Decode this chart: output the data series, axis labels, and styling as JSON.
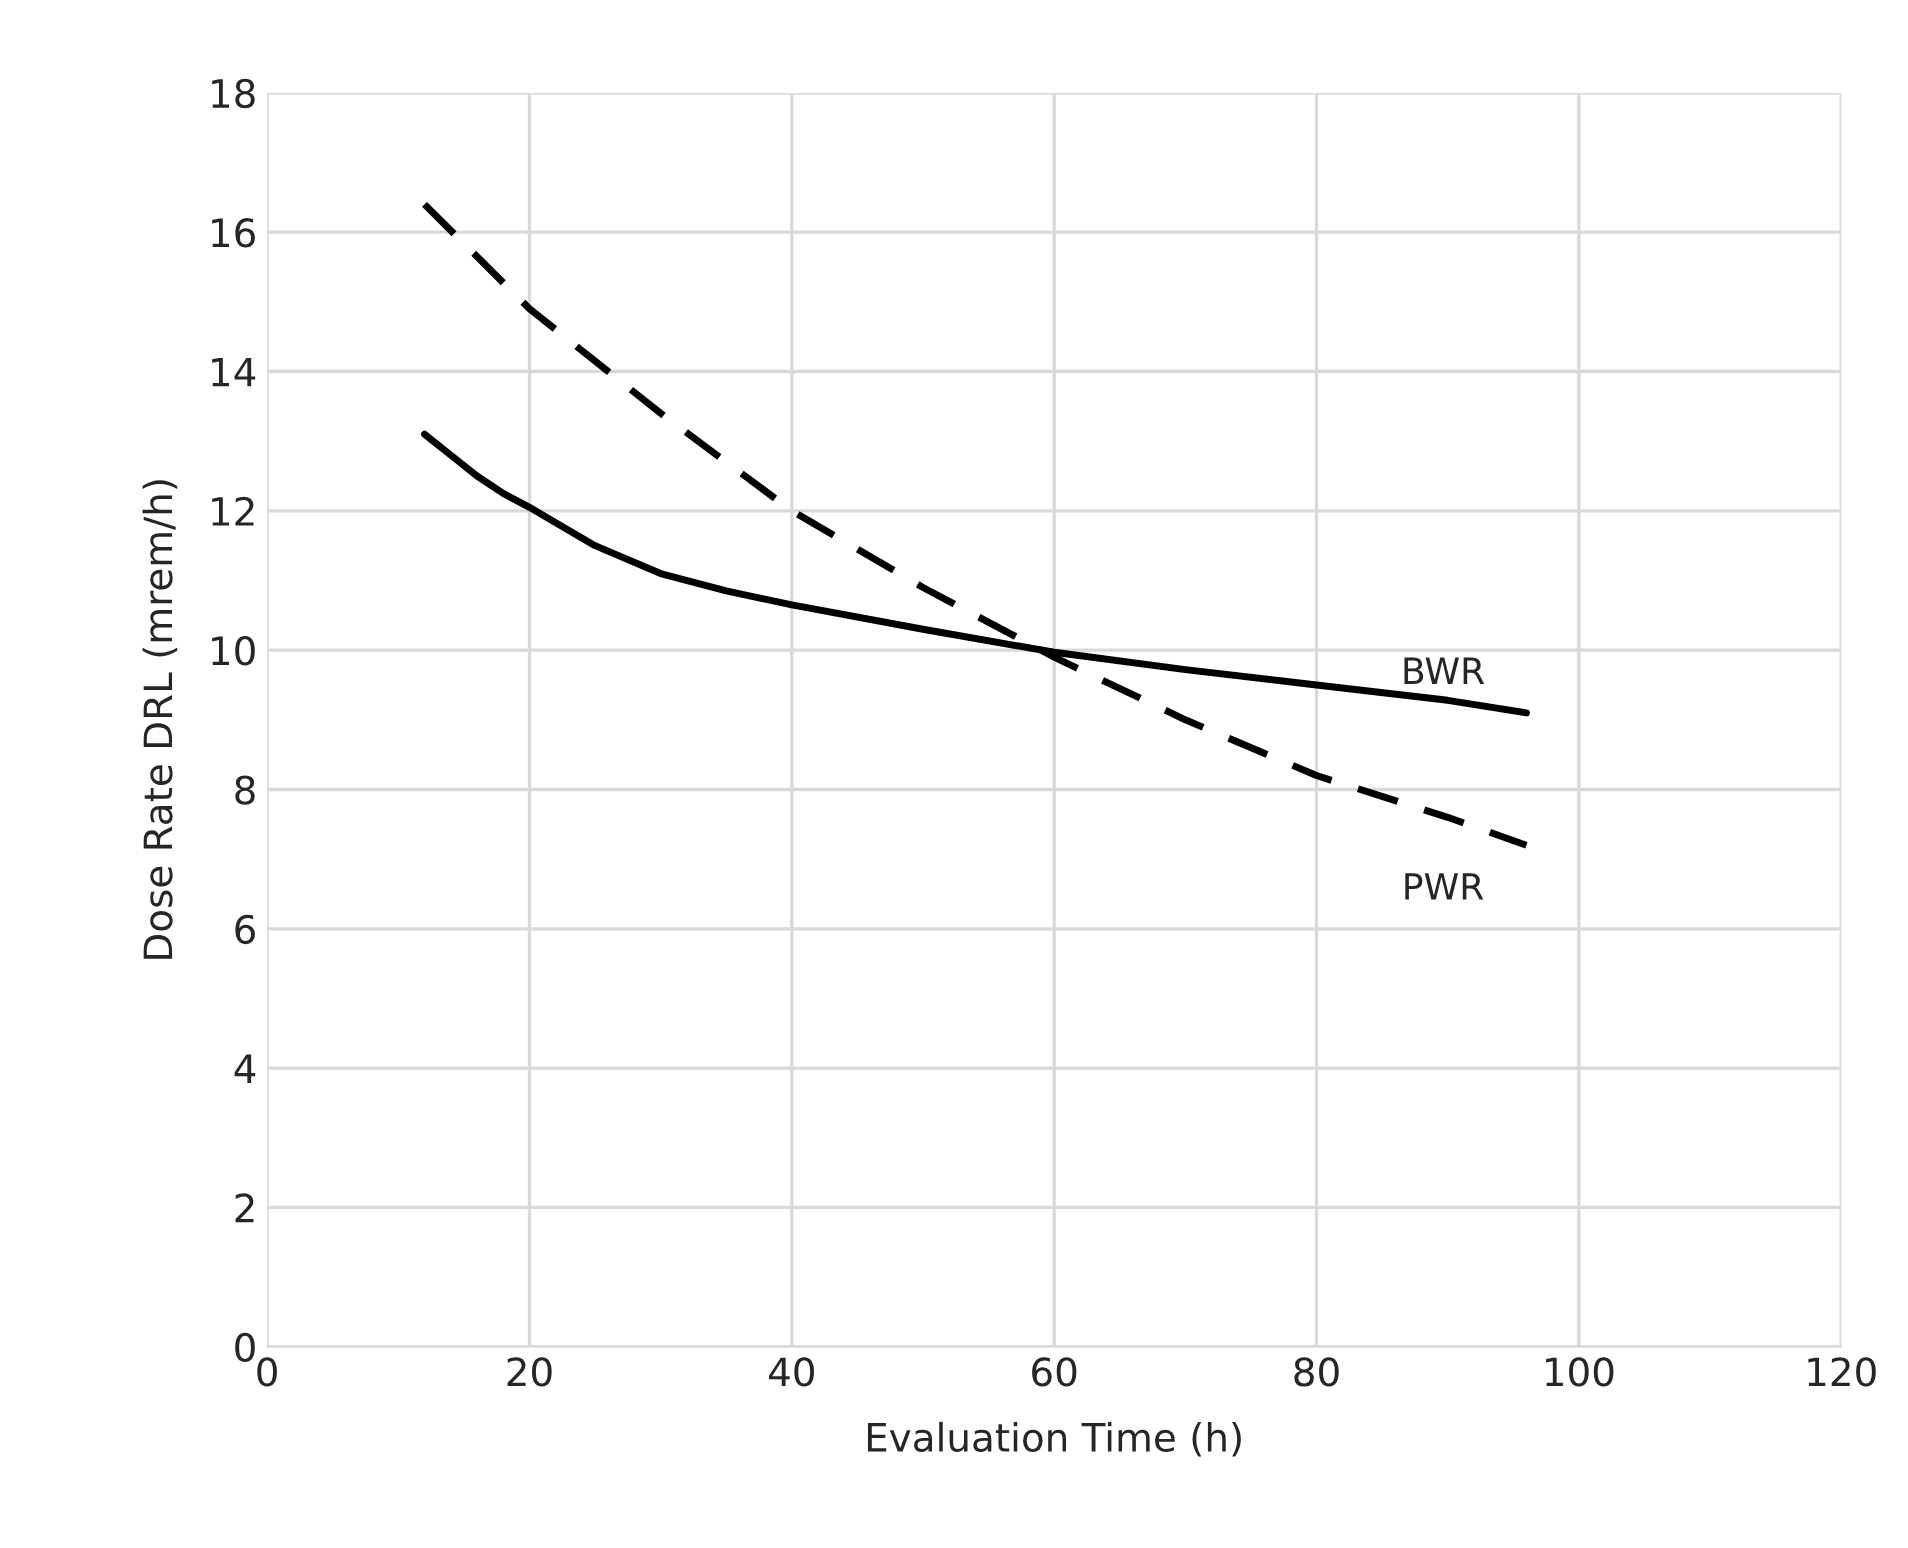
{
  "chart_data": {
    "type": "line",
    "xlabel": "Evaluation Time (h)",
    "ylabel": "Dose Rate DRL (mrem/h)",
    "xlim": [
      0,
      120
    ],
    "xticks": [
      0,
      20,
      40,
      60,
      80,
      100,
      120
    ],
    "ylim": [
      0,
      18
    ],
    "yticks": [
      0,
      2,
      4,
      6,
      8,
      10,
      12,
      14,
      16,
      18
    ],
    "grid": true,
    "legend": false,
    "marker": "none",
    "series": [
      {
        "name": "BWR",
        "color": "#000000",
        "line_style": "solid",
        "x": [
          12,
          14,
          16,
          18,
          20,
          25,
          30,
          35,
          40,
          50,
          60,
          70,
          80,
          90,
          96
        ],
        "values": [
          13.1,
          12.8,
          12.5,
          12.25,
          12.05,
          11.5,
          11.1,
          10.85,
          10.65,
          10.3,
          9.97,
          9.72,
          9.5,
          9.28,
          9.1
        ]
      },
      {
        "name": "PWR",
        "color": "#000000",
        "line_style": "dashed",
        "x": [
          12,
          20,
          30,
          40,
          50,
          60,
          70,
          80,
          90,
          96
        ],
        "values": [
          16.4,
          14.9,
          13.4,
          12.0,
          10.9,
          9.9,
          9.0,
          8.2,
          7.6,
          7.2
        ]
      }
    ]
  }
}
